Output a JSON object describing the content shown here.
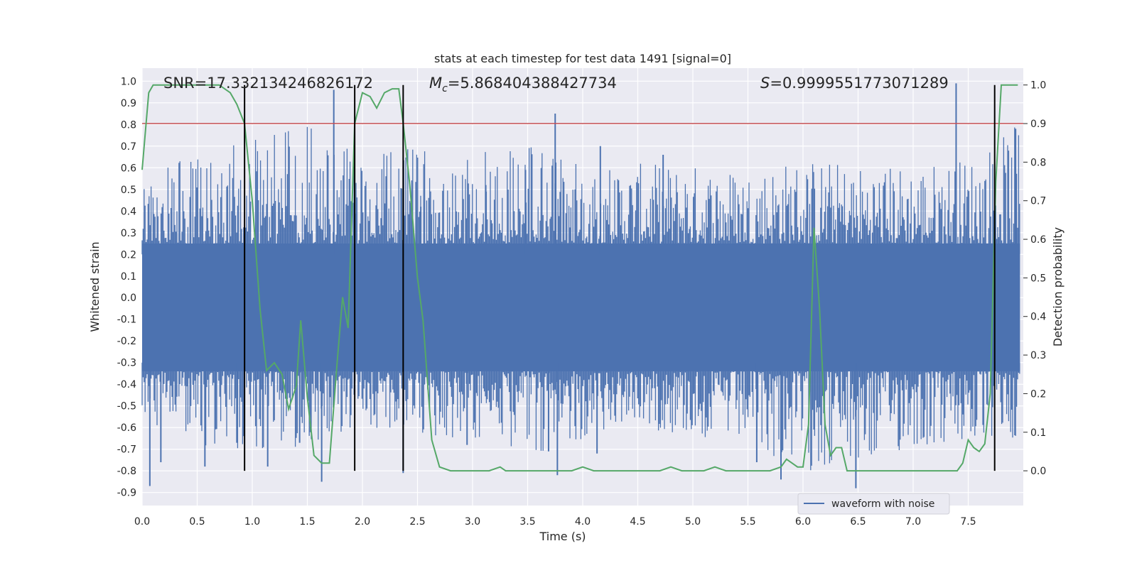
{
  "colors": {
    "background": "#eaeaf2",
    "grid": "#ffffff",
    "waveform": "#4c72b0",
    "probability": "#55a868",
    "threshold": "#c44e52",
    "marker": "#000000",
    "text": "#262626"
  },
  "chart_data": {
    "type": "line",
    "title": "stats at each timestep for test data 1491 [signal=0]",
    "xlabel": "Time (s)",
    "ylabel": "Whitened strain",
    "y2label": "Detection probability",
    "xlim": [
      0.0,
      8.0
    ],
    "ylim": [
      -0.96,
      1.06
    ],
    "y2lim": [
      -0.09,
      1.0436
    ],
    "xticks": [
      "0.0",
      "0.5",
      "1.0",
      "1.5",
      "2.0",
      "2.5",
      "3.0",
      "3.5",
      "4.0",
      "4.5",
      "5.0",
      "5.5",
      "6.0",
      "6.5",
      "7.0",
      "7.5"
    ],
    "yticks": [
      "-0.9",
      "-0.8",
      "-0.7",
      "-0.6",
      "-0.5",
      "-0.4",
      "-0.3",
      "-0.2",
      "-0.1",
      "0.0",
      "0.1",
      "0.2",
      "0.3",
      "0.4",
      "0.5",
      "0.6",
      "0.7",
      "0.8",
      "0.9",
      "1.0"
    ],
    "y2ticks": [
      "0.0",
      "0.1",
      "0.2",
      "0.3",
      "0.4",
      "0.5",
      "0.6",
      "0.7",
      "0.8",
      "0.9",
      "1.0"
    ],
    "annotations": {
      "snr": "SNR=17.332134246826172",
      "mc_symbol": "M",
      "mc_subscript": "c",
      "mc_value": "=5.868404388427734",
      "s_symbol": "S",
      "s_value": "=0.9999551773071289"
    },
    "legend": {
      "label": "waveform with noise",
      "location": "lower right"
    },
    "threshold_probability": 0.9,
    "vertical_markers_s": [
      0.93,
      1.93,
      2.37,
      7.74
    ],
    "marker_probability_range": [
      0.0,
      1.0
    ],
    "series": [
      {
        "name": "waveform with noise",
        "kind": "noise-envelope",
        "core_band": [
          -0.34,
          0.25
        ],
        "envelope_x": [
          0.0,
          0.5,
          1.0,
          1.5,
          2.0,
          2.5,
          3.0,
          3.5,
          4.0,
          4.5,
          5.0,
          5.5,
          6.0,
          6.5,
          7.0,
          7.5,
          7.95
        ],
        "envelope_upper": [
          0.6,
          0.65,
          0.75,
          0.8,
          0.65,
          0.7,
          0.7,
          0.75,
          0.62,
          0.62,
          0.62,
          0.6,
          0.65,
          0.62,
          0.62,
          0.65,
          0.8
        ],
        "envelope_lower": [
          -0.55,
          -0.7,
          -0.7,
          -0.7,
          -0.6,
          -0.65,
          -0.65,
          -0.75,
          -0.65,
          -0.6,
          -0.65,
          -0.7,
          -0.8,
          -0.8,
          -0.7,
          -0.7,
          -0.65
        ],
        "spikes": [
          [
            0.07,
            -0.87
          ],
          [
            0.17,
            -0.76
          ],
          [
            0.57,
            -0.78
          ],
          [
            0.86,
            -0.67
          ],
          [
            1.14,
            -0.78
          ],
          [
            1.43,
            -0.67
          ],
          [
            1.63,
            -0.85
          ],
          [
            1.74,
            0.96
          ],
          [
            2.37,
            -0.81
          ],
          [
            2.53,
            0.42
          ],
          [
            2.95,
            -0.68
          ],
          [
            3.12,
            0.52
          ],
          [
            3.48,
            0.59
          ],
          [
            3.69,
            -0.71
          ],
          [
            3.75,
            0.85
          ],
          [
            3.77,
            -0.82
          ],
          [
            4.13,
            -0.72
          ],
          [
            4.16,
            0.7
          ],
          [
            4.73,
            0.66
          ],
          [
            5.58,
            -0.76
          ],
          [
            5.8,
            -0.84
          ],
          [
            6.48,
            -0.88
          ],
          [
            7.39,
            0.99
          ],
          [
            7.93,
            0.78
          ]
        ]
      },
      {
        "name": "detection probability",
        "axis": "y2",
        "x": [
          0.0,
          0.06,
          0.1,
          0.2,
          0.3,
          0.4,
          0.5,
          0.6,
          0.7,
          0.8,
          0.86,
          0.93,
          1.0,
          1.07,
          1.13,
          1.2,
          1.27,
          1.33,
          1.4,
          1.44,
          1.5,
          1.56,
          1.63,
          1.7,
          1.77,
          1.82,
          1.87,
          1.93,
          2.0,
          2.07,
          2.13,
          2.2,
          2.27,
          2.33,
          2.37,
          2.43,
          2.5,
          2.55,
          2.63,
          2.7,
          2.8,
          2.9,
          3.0,
          3.1,
          3.15,
          3.25,
          3.3,
          3.4,
          3.5,
          3.6,
          3.7,
          3.8,
          3.9,
          4.0,
          4.1,
          4.2,
          4.3,
          4.5,
          4.7,
          4.8,
          4.9,
          5.0,
          5.1,
          5.2,
          5.3,
          5.5,
          5.7,
          5.8,
          5.85,
          5.9,
          5.95,
          6.0,
          6.05,
          6.1,
          6.15,
          6.2,
          6.25,
          6.3,
          6.35,
          6.4,
          6.45,
          6.5,
          6.6,
          6.8,
          7.0,
          7.2,
          7.35,
          7.4,
          7.45,
          7.5,
          7.55,
          7.6,
          7.65,
          7.7,
          7.75,
          7.8,
          7.9,
          7.95
        ],
        "y": [
          0.78,
          0.98,
          1.0,
          1.0,
          1.0,
          1.0,
          1.0,
          1.0,
          1.0,
          0.98,
          0.95,
          0.9,
          0.7,
          0.42,
          0.26,
          0.28,
          0.25,
          0.16,
          0.22,
          0.39,
          0.19,
          0.04,
          0.02,
          0.02,
          0.28,
          0.45,
          0.37,
          0.9,
          0.98,
          0.97,
          0.94,
          0.98,
          0.99,
          0.99,
          0.9,
          0.74,
          0.5,
          0.39,
          0.08,
          0.01,
          0.0,
          0.0,
          0.0,
          0.0,
          0.0,
          0.01,
          0.0,
          0.0,
          0.0,
          0.0,
          0.0,
          0.0,
          0.0,
          0.01,
          0.0,
          0.0,
          0.0,
          0.0,
          0.0,
          0.01,
          0.0,
          0.0,
          0.0,
          0.01,
          0.0,
          0.0,
          0.0,
          0.01,
          0.03,
          0.02,
          0.01,
          0.01,
          0.12,
          0.63,
          0.42,
          0.12,
          0.04,
          0.06,
          0.06,
          0.0,
          0.0,
          0.0,
          0.0,
          0.0,
          0.0,
          0.0,
          0.0,
          0.0,
          0.02,
          0.08,
          0.06,
          0.05,
          0.07,
          0.2,
          0.75,
          1.0,
          1.0,
          1.0
        ]
      }
    ]
  }
}
